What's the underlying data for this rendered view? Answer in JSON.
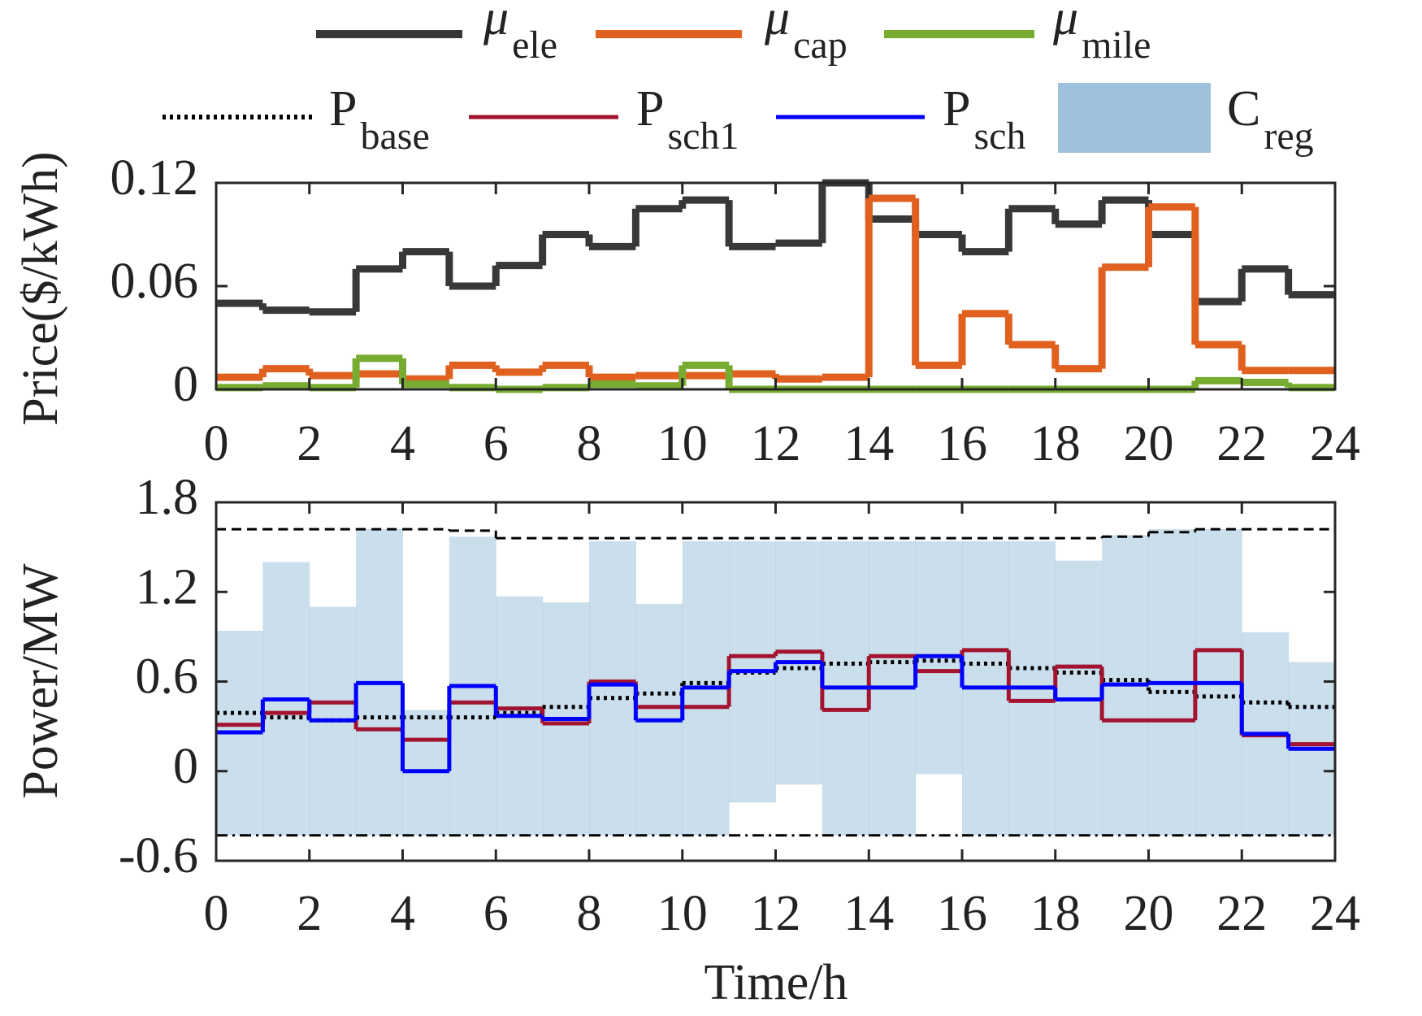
{
  "chart_data": [
    {
      "type": "line",
      "step": true,
      "x": [
        0,
        1,
        2,
        3,
        4,
        5,
        6,
        7,
        8,
        9,
        10,
        11,
        12,
        13,
        14,
        15,
        16,
        17,
        18,
        19,
        20,
        21,
        22,
        23
      ],
      "xlim": [
        0,
        24
      ],
      "xticks": [
        0,
        2,
        4,
        6,
        8,
        10,
        12,
        14,
        16,
        18,
        20,
        22,
        24
      ],
      "ylim": [
        0,
        0.12
      ],
      "yticks": [
        0,
        0.06,
        0.12
      ],
      "ylabel": "Price($/kWh)",
      "series": [
        {
          "name": "μ",
          "subscript": "ele",
          "color": "#383838",
          "style": "solid",
          "values": [
            0.05,
            0.046,
            0.045,
            0.07,
            0.08,
            0.06,
            0.072,
            0.09,
            0.083,
            0.105,
            0.11,
            0.083,
            0.085,
            0.12,
            0.099,
            0.09,
            0.08,
            0.105,
            0.096,
            0.11,
            0.09,
            0.051,
            0.07,
            0.055
          ]
        },
        {
          "name": "μ",
          "subscript": "cap",
          "color": "#e0601f",
          "style": "solid",
          "values": [
            0.007,
            0.012,
            0.008,
            0.009,
            0.006,
            0.014,
            0.01,
            0.014,
            0.007,
            0.008,
            0.008,
            0.009,
            0.006,
            0.007,
            0.111,
            0.014,
            0.044,
            0.026,
            0.012,
            0.071,
            0.106,
            0.026,
            0.011,
            0.011
          ]
        },
        {
          "name": "μ",
          "subscript": "mile",
          "color": "#77ac30",
          "style": "solid",
          "values": [
            0.001,
            0.002,
            0.001,
            0.018,
            0.003,
            0.001,
            0,
            0.001,
            0.003,
            0.002,
            0.014,
            0,
            0,
            0,
            0,
            0,
            0,
            0,
            0,
            0,
            0,
            0.005,
            0.004,
            0.001
          ]
        }
      ]
    },
    {
      "type": "line",
      "step": true,
      "x": [
        0,
        1,
        2,
        3,
        4,
        5,
        6,
        7,
        8,
        9,
        10,
        11,
        12,
        13,
        14,
        15,
        16,
        17,
        18,
        19,
        20,
        21,
        22,
        23
      ],
      "xlim": [
        0,
        24
      ],
      "xticks": [
        0,
        2,
        4,
        6,
        8,
        10,
        12,
        14,
        16,
        18,
        20,
        22,
        24
      ],
      "ylim": [
        -0.6,
        1.8
      ],
      "yticks": [
        -0.6,
        0,
        0.6,
        1.2,
        1.8
      ],
      "ylabel": "Power/MW",
      "xlabel": "Time/h",
      "series": [
        {
          "name": "P",
          "subscript": "base",
          "color": "#000000",
          "style": "dotted",
          "values": [
            0.39,
            0.36,
            0.34,
            0.36,
            0.36,
            0.36,
            0.39,
            0.43,
            0.49,
            0.52,
            0.59,
            0.66,
            0.69,
            0.72,
            0.73,
            0.74,
            0.72,
            0.69,
            0.66,
            0.61,
            0.53,
            0.5,
            0.46,
            0.43
          ]
        },
        {
          "name": "P",
          "subscript": "sch1",
          "color": "#a2142f",
          "style": "solid",
          "values": [
            0.31,
            0.39,
            0.46,
            0.28,
            0.21,
            0.46,
            0.42,
            0.32,
            0.6,
            0.43,
            0.43,
            0.77,
            0.8,
            0.41,
            0.77,
            0.67,
            0.81,
            0.47,
            0.7,
            0.34,
            0.34,
            0.81,
            0.24,
            0.18
          ]
        },
        {
          "name": "P",
          "subscript": "sch",
          "color": "#0000ff",
          "style": "solid",
          "values": [
            0.26,
            0.48,
            0.34,
            0.59,
            0,
            0.57,
            0.37,
            0.35,
            0.58,
            0.34,
            0.56,
            0.67,
            0.73,
            0.56,
            0.56,
            0.77,
            0.56,
            0.56,
            0.48,
            0.58,
            0.59,
            0.59,
            0.25,
            0.15
          ]
        },
        {
          "name": "C",
          "subscript": "reg",
          "color": "#9fc2dc",
          "style": "area",
          "upper": [
            0.94,
            1.4,
            1.1,
            1.62,
            0.41,
            1.57,
            1.17,
            1.13,
            1.54,
            1.12,
            1.54,
            1.54,
            1.54,
            1.54,
            1.54,
            1.54,
            1.54,
            1.54,
            1.41,
            1.58,
            1.62,
            1.62,
            0.93,
            0.73
          ],
          "lower": [
            -0.43,
            -0.43,
            -0.43,
            -0.43,
            -0.43,
            -0.43,
            -0.43,
            -0.43,
            -0.43,
            -0.43,
            -0.43,
            -0.21,
            -0.09,
            -0.43,
            -0.43,
            -0.02,
            -0.43,
            -0.43,
            -0.43,
            -0.43,
            -0.43,
            -0.43,
            -0.43,
            -0.43
          ]
        },
        {
          "color": "#000000",
          "style": "dashed",
          "values": [
            1.62,
            1.62,
            1.62,
            1.62,
            1.62,
            1.61,
            1.56,
            1.56,
            1.56,
            1.56,
            1.56,
            1.56,
            1.56,
            1.56,
            1.56,
            1.56,
            1.56,
            1.56,
            1.56,
            1.57,
            1.6,
            1.62,
            1.62,
            1.62
          ]
        },
        {
          "color": "#000000",
          "style": "dashdot",
          "values": [
            -0.43,
            -0.43,
            -0.43,
            -0.43,
            -0.43,
            -0.43,
            -0.43,
            -0.43,
            -0.43,
            -0.43,
            -0.43,
            -0.43,
            -0.43,
            -0.43,
            -0.43,
            -0.43,
            -0.43,
            -0.43,
            -0.43,
            -0.43,
            -0.43,
            -0.43,
            -0.43,
            -0.43
          ]
        }
      ]
    }
  ]
}
